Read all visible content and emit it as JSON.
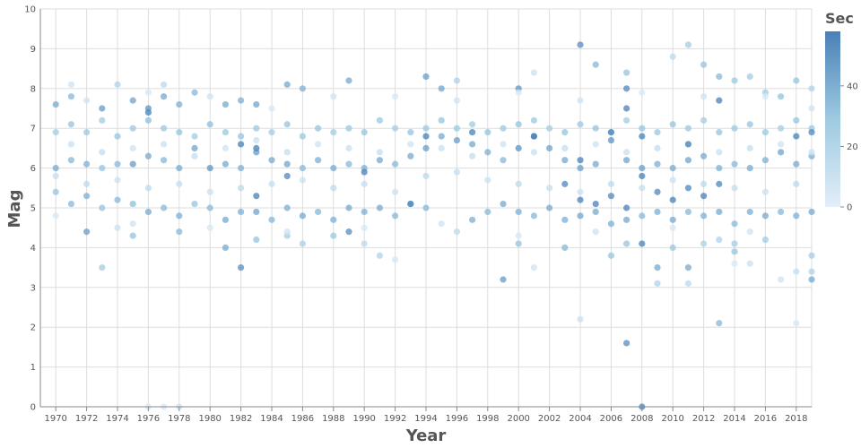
{
  "chart_data": {
    "type": "scatter",
    "title": "",
    "xlabel": "Year",
    "ylabel": "Mag",
    "xlim": [
      1969,
      2019
    ],
    "ylim": [
      0,
      10
    ],
    "x_ticks": [
      1970,
      1972,
      1974,
      1976,
      1978,
      1980,
      1982,
      1984,
      1986,
      1988,
      1990,
      1992,
      1994,
      1996,
      1998,
      2000,
      2002,
      2004,
      2006,
      2008,
      2010,
      2012,
      2014,
      2016,
      2018
    ],
    "y_ticks": [
      0,
      1,
      2,
      3,
      4,
      5,
      6,
      7,
      8,
      9,
      10
    ],
    "grid": true,
    "color_encoding": "Sec",
    "legend": {
      "title": "Sec",
      "placement": "right",
      "ticks": [
        0,
        20,
        40
      ],
      "range": [
        0,
        58
      ],
      "colors": [
        "#e3eef9",
        "#9ecae1",
        "#4a80b8"
      ]
    },
    "points": [
      [
        1976,
        0,
        5
      ],
      [
        1977,
        0,
        4
      ],
      [
        1978,
        0,
        8
      ],
      [
        2008,
        0,
        55
      ],
      [
        2007,
        1.6,
        50
      ],
      [
        2004,
        2.2,
        10
      ],
      [
        2013,
        2.1,
        35
      ],
      [
        2018,
        2.1,
        5
      ],
      [
        1973,
        3.5,
        25
      ],
      [
        1982,
        3.5,
        50
      ],
      [
        1999,
        3.2,
        45
      ],
      [
        2009,
        3.5,
        40
      ],
      [
        2009,
        3.1,
        20
      ],
      [
        2011,
        3.5,
        40
      ],
      [
        2011,
        3.1,
        15
      ],
      [
        2014,
        3.6,
        5
      ],
      [
        2015,
        3.6,
        10
      ],
      [
        2017,
        3.2,
        8
      ],
      [
        2018,
        3.4,
        12
      ],
      [
        2019,
        3.8,
        25
      ],
      [
        2019,
        3.4,
        20
      ],
      [
        2019,
        3.2,
        40
      ],
      [
        2001,
        3.5,
        8
      ],
      [
        1992,
        3.7,
        6
      ],
      [
        2013,
        4.2,
        20
      ],
      [
        2014,
        4.1,
        25
      ],
      [
        2014,
        3.9,
        30
      ],
      [
        2016,
        4.2,
        25
      ],
      [
        1975,
        4.3,
        30
      ],
      [
        1972,
        4.4,
        45
      ],
      [
        1978,
        4.4,
        35
      ],
      [
        1981,
        4.0,
        40
      ],
      [
        1986,
        4.1,
        22
      ],
      [
        1989,
        4.4,
        50
      ],
      [
        1991,
        3.8,
        20
      ],
      [
        1990,
        4.1,
        15
      ],
      [
        2000,
        4.1,
        30
      ],
      [
        2003,
        4.0,
        35
      ],
      [
        2007,
        4.1,
        30
      ],
      [
        2008,
        4.1,
        55
      ],
      [
        2006,
        3.8,
        30
      ],
      [
        2010,
        4.0,
        28
      ],
      [
        2012,
        4.1,
        22
      ],
      [
        1988,
        4.3,
        28
      ],
      [
        1996,
        4.4,
        15
      ],
      [
        1974,
        4.5,
        10
      ],
      [
        1983,
        4.2,
        30
      ],
      [
        1985,
        4.3,
        25
      ],
      [
        1970,
        6.0,
        40
      ],
      [
        1971,
        6.2,
        35
      ],
      [
        1972,
        6.1,
        38
      ],
      [
        1973,
        6.0,
        30
      ],
      [
        1974,
        6.1,
        35
      ],
      [
        1975,
        6.1,
        45
      ],
      [
        1976,
        6.3,
        40
      ],
      [
        1977,
        6.2,
        35
      ],
      [
        1978,
        6.0,
        40
      ],
      [
        1979,
        6.5,
        42
      ],
      [
        1980,
        6.0,
        48
      ],
      [
        1981,
        6.1,
        40
      ],
      [
        1982,
        6.0,
        38
      ],
      [
        1983,
        6.4,
        45
      ],
      [
        1984,
        6.2,
        40
      ],
      [
        1985,
        6.1,
        42
      ],
      [
        1986,
        6.0,
        35
      ],
      [
        1987,
        6.2,
        38
      ],
      [
        1988,
        6.0,
        40
      ],
      [
        1989,
        6.1,
        35
      ],
      [
        1990,
        6.0,
        38
      ],
      [
        1991,
        6.2,
        40
      ],
      [
        1992,
        6.1,
        35
      ],
      [
        1993,
        6.3,
        40
      ],
      [
        1994,
        6.5,
        45
      ],
      [
        1995,
        6.8,
        40
      ],
      [
        1996,
        6.7,
        45
      ],
      [
        1997,
        6.6,
        40
      ],
      [
        1998,
        6.4,
        38
      ],
      [
        1999,
        6.2,
        35
      ],
      [
        2000,
        6.5,
        48
      ],
      [
        2001,
        6.8,
        50
      ],
      [
        2002,
        6.5,
        42
      ],
      [
        2003,
        6.2,
        40
      ],
      [
        2004,
        6.0,
        45
      ],
      [
        2005,
        6.1,
        40
      ],
      [
        2006,
        6.7,
        48
      ],
      [
        2007,
        6.2,
        42
      ],
      [
        2008,
        6.0,
        45
      ],
      [
        2009,
        6.1,
        38
      ],
      [
        2010,
        6.0,
        40
      ],
      [
        2011,
        6.2,
        42
      ],
      [
        2012,
        6.3,
        40
      ],
      [
        2013,
        6.0,
        38
      ],
      [
        2014,
        6.1,
        35
      ],
      [
        2015,
        6.0,
        40
      ],
      [
        2016,
        6.2,
        38
      ],
      [
        2017,
        6.4,
        42
      ],
      [
        2018,
        6.1,
        40
      ],
      [
        2019,
        6.3,
        38
      ],
      [
        1970,
        7.6,
        40
      ],
      [
        1971,
        7.8,
        35
      ],
      [
        1973,
        7.5,
        45
      ],
      [
        1975,
        7.7,
        42
      ],
      [
        1976,
        7.5,
        48
      ],
      [
        1977,
        7.8,
        40
      ],
      [
        1978,
        7.6,
        38
      ],
      [
        1979,
        7.9,
        35
      ],
      [
        1981,
        7.6,
        40
      ],
      [
        1982,
        7.7,
        38
      ],
      [
        1983,
        7.6,
        42
      ],
      [
        1985,
        8.1,
        40
      ],
      [
        1986,
        8.0,
        38
      ],
      [
        1989,
        8.2,
        40
      ],
      [
        1994,
        8.3,
        45
      ],
      [
        1995,
        8.0,
        42
      ],
      [
        2000,
        8.0,
        48
      ],
      [
        2004,
        9.1,
        50
      ],
      [
        2005,
        8.6,
        35
      ],
      [
        2007,
        8.4,
        30
      ],
      [
        2011,
        9.1,
        25
      ],
      [
        2010,
        8.8,
        15
      ],
      [
        2012,
        8.6,
        30
      ],
      [
        2013,
        8.3,
        35
      ],
      [
        2014,
        8.2,
        28
      ],
      [
        2015,
        8.3,
        25
      ],
      [
        2018,
        8.2,
        30
      ],
      [
        2001,
        8.4,
        10
      ],
      [
        1996,
        8.2,
        20
      ],
      [
        1971,
        8.1,
        8
      ],
      [
        1974,
        8.1,
        20
      ],
      [
        1977,
        8.1,
        15
      ],
      [
        2019,
        8.0,
        20
      ],
      [
        2016,
        7.9,
        25
      ],
      [
        2017,
        7.8,
        30
      ],
      [
        1970,
        5.4,
        30
      ],
      [
        1971,
        5.1,
        35
      ],
      [
        1972,
        5.3,
        38
      ],
      [
        1973,
        5.0,
        30
      ],
      [
        1974,
        5.2,
        35
      ],
      [
        1975,
        5.1,
        32
      ],
      [
        1976,
        4.9,
        40
      ],
      [
        1977,
        5.0,
        35
      ],
      [
        1978,
        4.8,
        38
      ],
      [
        1979,
        5.1,
        30
      ],
      [
        1980,
        5.0,
        35
      ],
      [
        1981,
        4.7,
        40
      ],
      [
        1982,
        4.9,
        38
      ],
      [
        1983,
        4.9,
        42
      ],
      [
        1984,
        4.7,
        35
      ],
      [
        1985,
        5.0,
        38
      ],
      [
        1986,
        4.8,
        40
      ],
      [
        1987,
        4.9,
        35
      ],
      [
        1988,
        4.7,
        38
      ],
      [
        1989,
        5.0,
        40
      ],
      [
        1990,
        4.9,
        38
      ],
      [
        1991,
        5.0,
        40
      ],
      [
        1992,
        4.8,
        35
      ],
      [
        1993,
        5.1,
        40
      ],
      [
        1994,
        5.0,
        35
      ],
      [
        1997,
        4.7,
        38
      ],
      [
        1998,
        4.9,
        35
      ],
      [
        1999,
        5.1,
        40
      ],
      [
        2000,
        4.9,
        38
      ],
      [
        2001,
        4.8,
        35
      ],
      [
        2002,
        5.0,
        40
      ],
      [
        2003,
        4.7,
        38
      ],
      [
        2004,
        4.8,
        42
      ],
      [
        2005,
        4.9,
        40
      ],
      [
        2006,
        4.6,
        38
      ],
      [
        2007,
        4.7,
        40
      ],
      [
        2008,
        4.8,
        35
      ],
      [
        2009,
        4.9,
        38
      ],
      [
        2010,
        4.7,
        40
      ],
      [
        2011,
        4.9,
        35
      ],
      [
        2012,
        4.8,
        38
      ],
      [
        2013,
        4.9,
        40
      ],
      [
        2014,
        4.6,
        35
      ],
      [
        2015,
        4.9,
        38
      ],
      [
        2016,
        4.8,
        40
      ],
      [
        2017,
        4.9,
        35
      ],
      [
        2018,
        4.8,
        38
      ],
      [
        2019,
        4.9,
        40
      ],
      [
        1970,
        6.9,
        25
      ],
      [
        1971,
        7.1,
        30
      ],
      [
        1972,
        6.9,
        28
      ],
      [
        1973,
        7.2,
        25
      ],
      [
        1974,
        6.8,
        30
      ],
      [
        1975,
        7.0,
        28
      ],
      [
        1976,
        7.2,
        32
      ],
      [
        1977,
        7.0,
        28
      ],
      [
        1978,
        6.9,
        30
      ],
      [
        1979,
        6.8,
        25
      ],
      [
        1980,
        7.1,
        32
      ],
      [
        1981,
        6.9,
        28
      ],
      [
        1982,
        6.8,
        30
      ],
      [
        1983,
        7.0,
        28
      ],
      [
        1984,
        6.9,
        25
      ],
      [
        1985,
        7.1,
        30
      ],
      [
        1986,
        6.8,
        28
      ],
      [
        1987,
        7.0,
        30
      ],
      [
        1988,
        6.9,
        25
      ],
      [
        1989,
        7.0,
        28
      ],
      [
        1990,
        6.9,
        30
      ],
      [
        1991,
        7.2,
        28
      ],
      [
        1992,
        7.0,
        25
      ],
      [
        1993,
        6.9,
        30
      ],
      [
        1994,
        7.0,
        28
      ],
      [
        1995,
        7.2,
        30
      ],
      [
        1996,
        7.0,
        28
      ],
      [
        1997,
        7.1,
        25
      ],
      [
        1998,
        6.9,
        30
      ],
      [
        1999,
        7.0,
        28
      ],
      [
        2000,
        7.1,
        30
      ],
      [
        2001,
        7.2,
        28
      ],
      [
        2002,
        7.0,
        25
      ],
      [
        2003,
        6.9,
        30
      ],
      [
        2004,
        7.1,
        28
      ],
      [
        2005,
        7.0,
        30
      ],
      [
        2006,
        6.9,
        28
      ],
      [
        2007,
        7.2,
        25
      ],
      [
        2008,
        7.0,
        30
      ],
      [
        2009,
        6.9,
        28
      ],
      [
        2010,
        7.1,
        30
      ],
      [
        2011,
        7.0,
        28
      ],
      [
        2012,
        7.2,
        25
      ],
      [
        2013,
        6.9,
        30
      ],
      [
        2014,
        7.0,
        28
      ],
      [
        2015,
        7.1,
        30
      ],
      [
        2016,
        6.9,
        28
      ],
      [
        2017,
        7.0,
        25
      ],
      [
        2018,
        7.2,
        30
      ],
      [
        2019,
        7.0,
        28
      ],
      [
        1970,
        5.8,
        12
      ],
      [
        1972,
        5.6,
        15
      ],
      [
        1974,
        5.7,
        10
      ],
      [
        1976,
        5.5,
        15
      ],
      [
        1978,
        5.6,
        12
      ],
      [
        1980,
        5.4,
        10
      ],
      [
        1982,
        5.5,
        15
      ],
      [
        1984,
        5.6,
        12
      ],
      [
        1986,
        5.7,
        10
      ],
      [
        1988,
        5.5,
        15
      ],
      [
        1990,
        5.6,
        12
      ],
      [
        1992,
        5.4,
        10
      ],
      [
        1994,
        5.8,
        15
      ],
      [
        1996,
        5.9,
        12
      ],
      [
        1998,
        5.7,
        10
      ],
      [
        2000,
        5.6,
        15
      ],
      [
        2002,
        5.5,
        12
      ],
      [
        2004,
        5.4,
        10
      ],
      [
        2006,
        5.6,
        15
      ],
      [
        2008,
        5.5,
        12
      ],
      [
        2010,
        5.7,
        10
      ],
      [
        2012,
        5.6,
        15
      ],
      [
        2014,
        5.5,
        12
      ],
      [
        2016,
        5.4,
        10
      ],
      [
        2018,
        5.6,
        15
      ],
      [
        1971,
        6.6,
        10
      ],
      [
        1973,
        6.4,
        12
      ],
      [
        1975,
        6.5,
        8
      ],
      [
        1977,
        6.6,
        10
      ],
      [
        1979,
        6.3,
        12
      ],
      [
        1981,
        6.5,
        8
      ],
      [
        1983,
        6.7,
        10
      ],
      [
        1985,
        6.4,
        12
      ],
      [
        1987,
        6.6,
        8
      ],
      [
        1989,
        6.5,
        10
      ],
      [
        1991,
        6.4,
        12
      ],
      [
        1993,
        6.6,
        8
      ],
      [
        1995,
        6.5,
        10
      ],
      [
        1997,
        6.3,
        12
      ],
      [
        1999,
        6.6,
        8
      ],
      [
        2001,
        6.4,
        10
      ],
      [
        2003,
        6.5,
        12
      ],
      [
        2005,
        6.6,
        8
      ],
      [
        2007,
        6.4,
        10
      ],
      [
        2009,
        6.5,
        12
      ],
      [
        2011,
        6.6,
        8
      ],
      [
        2013,
        6.4,
        10
      ],
      [
        2015,
        6.5,
        12
      ],
      [
        2017,
        6.6,
        8
      ],
      [
        2019,
        6.4,
        10
      ],
      [
        1970,
        4.8,
        5
      ],
      [
        1975,
        4.6,
        8
      ],
      [
        1980,
        4.5,
        5
      ],
      [
        1985,
        4.4,
        8
      ],
      [
        1990,
        4.5,
        5
      ],
      [
        1995,
        4.6,
        8
      ],
      [
        2000,
        4.3,
        5
      ],
      [
        2005,
        4.4,
        8
      ],
      [
        2010,
        4.5,
        5
      ],
      [
        2015,
        4.4,
        8
      ],
      [
        1972,
        7.7,
        8
      ],
      [
        1976,
        7.9,
        5
      ],
      [
        1980,
        7.8,
        8
      ],
      [
        1984,
        7.5,
        5
      ],
      [
        1988,
        7.8,
        8
      ],
      [
        1992,
        7.8,
        5
      ],
      [
        1996,
        7.7,
        8
      ],
      [
        2000,
        7.9,
        5
      ],
      [
        2004,
        7.7,
        8
      ],
      [
        2008,
        7.9,
        5
      ],
      [
        2012,
        7.8,
        8
      ],
      [
        2016,
        7.8,
        5
      ],
      [
        2019,
        7.5,
        8
      ],
      [
        2004,
        5.2,
        55
      ],
      [
        2005,
        5.1,
        55
      ],
      [
        2006,
        5.3,
        52
      ],
      [
        2007,
        5.0,
        55
      ],
      [
        2008,
        5.8,
        55
      ],
      [
        2009,
        5.4,
        52
      ],
      [
        2010,
        5.2,
        55
      ],
      [
        2011,
        5.5,
        52
      ],
      [
        2012,
        5.3,
        55
      ],
      [
        2013,
        5.6,
        52
      ],
      [
        1983,
        5.3,
        55
      ],
      [
        1985,
        5.8,
        52
      ],
      [
        1990,
        5.9,
        55
      ],
      [
        1993,
        5.1,
        55
      ],
      [
        2003,
        5.6,
        52
      ],
      [
        1976,
        7.4,
        55
      ],
      [
        1982,
        6.6,
        55
      ],
      [
        1983,
        6.5,
        55
      ],
      [
        1994,
        6.8,
        55
      ],
      [
        1997,
        6.9,
        55
      ],
      [
        2007,
        7.5,
        55
      ],
      [
        2007,
        8.0,
        52
      ],
      [
        2013,
        7.7,
        55
      ],
      [
        2018,
        6.8,
        55
      ],
      [
        2019,
        6.9,
        52
      ],
      [
        2001,
        6.8,
        58
      ],
      [
        2004,
        6.2,
        55
      ],
      [
        2006,
        6.9,
        55
      ],
      [
        2008,
        6.8,
        55
      ],
      [
        2011,
        6.6,
        55
      ]
    ]
  }
}
